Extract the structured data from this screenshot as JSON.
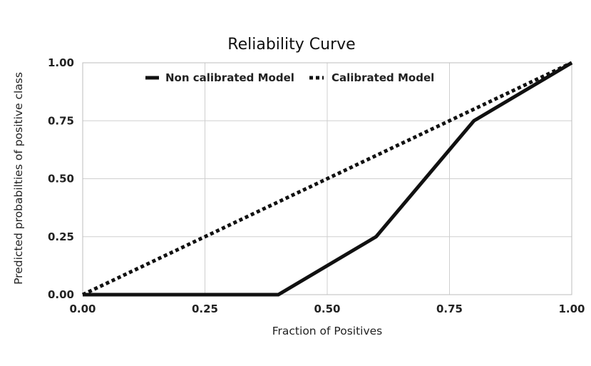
{
  "chart_data": {
    "type": "line",
    "title": "Reliability Curve",
    "xlabel": "Fraction of Positives",
    "ylabel": "Predicted probabilties of positive class",
    "xlim": [
      0,
      1
    ],
    "ylim": [
      0,
      1
    ],
    "x_ticks": [
      0,
      0.25,
      0.5,
      0.75,
      1
    ],
    "y_ticks": [
      0,
      0.25,
      0.5,
      0.75,
      1
    ],
    "x_tick_labels": [
      "0.00",
      "0.25",
      "0.50",
      "0.75",
      "1.00"
    ],
    "y_tick_labels": [
      "0.00",
      "0.25",
      "0.50",
      "0.75",
      "1.00"
    ],
    "grid": true,
    "legend_position": "top",
    "series": [
      {
        "name": "Non calibrated Model",
        "style": "solid",
        "color": "#111111",
        "x": [
          0,
          0.4,
          0.6,
          0.8,
          1
        ],
        "y": [
          0,
          0,
          0.25,
          0.75,
          1
        ]
      },
      {
        "name": "Calibrated Model",
        "style": "dotted",
        "color": "#111111",
        "x": [
          0,
          1
        ],
        "y": [
          0,
          1
        ]
      }
    ]
  }
}
